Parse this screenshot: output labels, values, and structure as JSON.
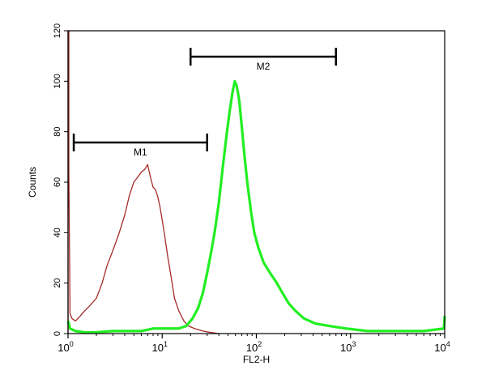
{
  "chart_data": {
    "type": "line",
    "title": "",
    "xlabel": "FL2-H",
    "ylabel": "Counts",
    "x_scale": "log",
    "xlim": [
      1,
      10000
    ],
    "ylim": [
      0,
      120
    ],
    "y_ticks": [
      0,
      20,
      40,
      60,
      80,
      100,
      120
    ],
    "x_ticks": [
      {
        "value": 1,
        "base": "10",
        "exp": "0"
      },
      {
        "value": 10,
        "base": "10",
        "exp": "1"
      },
      {
        "value": 100,
        "base": "10",
        "exp": "2"
      },
      {
        "value": 1000,
        "base": "10",
        "exp": "3"
      },
      {
        "value": 10000,
        "base": "10",
        "exp": "4"
      }
    ],
    "grid": false,
    "legend": "none",
    "series": [
      {
        "color": "#a52a2a",
        "stroke": "thin",
        "points": [
          [
            1.0,
            0
          ],
          [
            1.0,
            120
          ],
          [
            1.02,
            120
          ],
          [
            1.02,
            64
          ],
          [
            1.05,
            8
          ],
          [
            1.1,
            6
          ],
          [
            1.2,
            5
          ],
          [
            1.35,
            7
          ],
          [
            1.5,
            9
          ],
          [
            1.7,
            11
          ],
          [
            2.0,
            14
          ],
          [
            2.3,
            20
          ],
          [
            2.6,
            27
          ],
          [
            3.0,
            33
          ],
          [
            3.5,
            40
          ],
          [
            4.0,
            47
          ],
          [
            4.5,
            55
          ],
          [
            5.0,
            60
          ],
          [
            5.5,
            62
          ],
          [
            6.0,
            64
          ],
          [
            6.5,
            65
          ],
          [
            7.0,
            67
          ],
          [
            7.5,
            62
          ],
          [
            8.0,
            58
          ],
          [
            8.5,
            57
          ],
          [
            9.0,
            54
          ],
          [
            9.5,
            50
          ],
          [
            10.0,
            45
          ],
          [
            10.7,
            38
          ],
          [
            11.5,
            30
          ],
          [
            12.5,
            22
          ],
          [
            13.5,
            14
          ],
          [
            15.0,
            9
          ],
          [
            17.0,
            5
          ],
          [
            19.0,
            3
          ],
          [
            22.0,
            2
          ],
          [
            27.0,
            1
          ],
          [
            32.0,
            0.5
          ],
          [
            40.0,
            0
          ]
        ]
      },
      {
        "color": "#22ee22",
        "stroke": "thick",
        "points": [
          [
            1.0,
            5
          ],
          [
            1.05,
            2
          ],
          [
            1.2,
            1
          ],
          [
            1.5,
            0.5
          ],
          [
            2.0,
            0.5
          ],
          [
            3.0,
            1
          ],
          [
            4.0,
            1
          ],
          [
            6.0,
            1
          ],
          [
            8.0,
            2
          ],
          [
            10.0,
            2
          ],
          [
            12.0,
            2
          ],
          [
            15.0,
            2
          ],
          [
            18.0,
            3
          ],
          [
            21.0,
            6
          ],
          [
            24.0,
            10
          ],
          [
            27.0,
            16
          ],
          [
            30.0,
            24
          ],
          [
            33.0,
            32
          ],
          [
            36.0,
            40
          ],
          [
            40.0,
            52
          ],
          [
            44.0,
            66
          ],
          [
            48.0,
            78
          ],
          [
            52.0,
            88
          ],
          [
            56.0,
            96
          ],
          [
            59.0,
            100
          ],
          [
            62.0,
            98
          ],
          [
            66.0,
            92
          ],
          [
            70.0,
            82
          ],
          [
            75.0,
            70
          ],
          [
            80.0,
            60
          ],
          [
            88.0,
            48
          ],
          [
            95.0,
            40
          ],
          [
            105.0,
            34
          ],
          [
            120.0,
            28
          ],
          [
            140.0,
            24
          ],
          [
            165.0,
            20
          ],
          [
            190.0,
            16
          ],
          [
            220.0,
            12
          ],
          [
            260.0,
            9
          ],
          [
            320.0,
            6
          ],
          [
            420.0,
            4
          ],
          [
            600.0,
            3
          ],
          [
            900.0,
            2
          ],
          [
            1500.0,
            1
          ],
          [
            3000.0,
            1
          ],
          [
            6000.0,
            1
          ],
          [
            9800.0,
            2
          ],
          [
            10000.0,
            7
          ]
        ]
      }
    ],
    "markers": [
      {
        "label": "M1",
        "x_start": 1.15,
        "x_end": 30
      },
      {
        "label": "M2",
        "x_start": 20,
        "x_end": 700
      }
    ]
  }
}
